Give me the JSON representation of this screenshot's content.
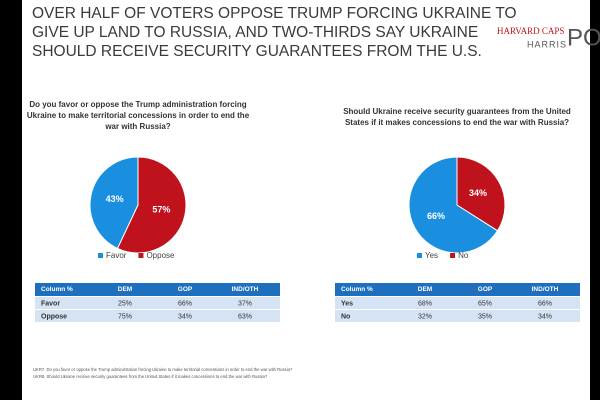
{
  "title_lines": [
    "OVER HALF OF VOTERS OPPOSE TRUMP FORCING UKRAINE TO",
    "GIVE UP LAND TO RUSSIA, AND TWO-THIRDS SAY UKRAINE",
    "SHOULD RECEIVE SECURITY GUARANTEES FROM THE U.S."
  ],
  "logo": {
    "top": "HARVARD CAPS",
    "bottom": "HARRIS",
    "big": "PO"
  },
  "chart_data": [
    {
      "type": "pie",
      "title_lines": [
        "Do you favor or oppose the Trump administration forcing",
        "Ukraine to make territorial concessions in order to end the",
        "war with Russia?"
      ],
      "categories": [
        "Favor",
        "Oppose"
      ],
      "values": [
        43,
        57
      ],
      "value_labels": [
        "43%",
        "57%"
      ],
      "colors": [
        "#1a8fe0",
        "#c0121c"
      ]
    },
    {
      "type": "pie",
      "title_lines": [
        "Should Ukraine receive security guarantees from the United",
        "States if it makes concessions to end the war with Russia?"
      ],
      "categories": [
        "Yes",
        "No"
      ],
      "values": [
        66,
        34
      ],
      "value_labels": [
        "66%",
        "34%"
      ],
      "colors": [
        "#1a8fe0",
        "#c0121c"
      ]
    }
  ],
  "tables": [
    {
      "header": [
        "Column %",
        "DEM",
        "GOP",
        "IND/OTH"
      ],
      "rows": [
        [
          "Favor",
          "25%",
          "66%",
          "37%"
        ],
        [
          "Oppose",
          "75%",
          "34%",
          "63%"
        ]
      ]
    },
    {
      "header": [
        "Column %",
        "DEM",
        "GOP",
        "IND/OTH"
      ],
      "rows": [
        [
          "Yes",
          "68%",
          "65%",
          "66%"
        ],
        [
          "No",
          "32%",
          "35%",
          "34%"
        ]
      ]
    }
  ],
  "footnotes": [
    "UKR7. Do you favor or oppose the Trump administration forcing Ukraine to make territorial concessions in order to end the war with Russia?",
    "UKR8. Should Ukraine receive security guarantees from the United States if it makes concessions to end the war with Russia?"
  ]
}
